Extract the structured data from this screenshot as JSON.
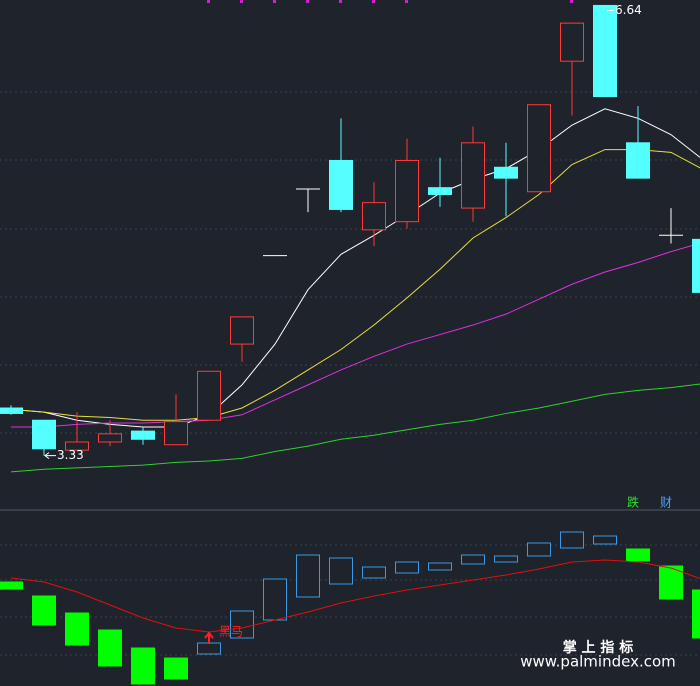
{
  "chart_data": [
    {
      "type": "candlestick",
      "ylim": [
        2.93,
        6.68
      ],
      "up_color": "#ff3a3a",
      "down_color": "#54ffff",
      "flat_color": "#ffffff",
      "open": [
        3.68,
        3.59,
        3.37,
        3.43,
        3.51,
        3.41,
        3.59,
        4.15,
        4.8,
        5.29,
        5.5,
        4.99,
        5.05,
        5.3,
        5.15,
        5.45,
        5.27,
        6.23,
        6.64,
        5.63,
        4.95,
        4.92
      ],
      "high": [
        3.7,
        3.59,
        3.65,
        3.59,
        3.54,
        3.78,
        3.95,
        4.35,
        4.8,
        5.29,
        5.81,
        5.34,
        5.66,
        5.52,
        5.75,
        5.63,
        5.91,
        6.51,
        6.64,
        5.9,
        5.15,
        4.92
      ],
      "low": [
        3.63,
        3.33,
        3.37,
        3.4,
        3.41,
        3.41,
        3.59,
        4.02,
        4.8,
        5.12,
        5.12,
        4.87,
        5.0,
        5.16,
        5.05,
        5.09,
        5.27,
        5.83,
        5.97,
        5.37,
        4.89,
        4.53
      ],
      "close": [
        3.64,
        3.38,
        3.43,
        3.49,
        3.45,
        3.58,
        3.95,
        4.35,
        4.8,
        5.29,
        5.14,
        5.19,
        5.5,
        5.25,
        5.63,
        5.37,
        5.91,
        6.51,
        5.97,
        5.37,
        4.95,
        4.53
      ],
      "ma": [
        {
          "color": "#ffffff",
          "values": [
            3.67,
            3.65,
            3.59,
            3.56,
            3.54,
            3.54,
            3.63,
            3.85,
            4.15,
            4.55,
            4.81,
            4.95,
            5.1,
            5.26,
            5.36,
            5.44,
            5.58,
            5.76,
            5.88,
            5.81,
            5.69,
            5.5
          ]
        },
        {
          "color": "#e8e040",
          "values": [
            3.67,
            3.65,
            3.62,
            3.61,
            3.59,
            3.59,
            3.61,
            3.68,
            3.81,
            3.96,
            4.11,
            4.29,
            4.49,
            4.7,
            4.93,
            5.08,
            5.25,
            5.47,
            5.58,
            5.58,
            5.56,
            5.43
          ]
        },
        {
          "color": "#e030e0",
          "values": [
            3.54,
            3.54,
            3.56,
            3.57,
            3.57,
            3.58,
            3.59,
            3.63,
            3.74,
            3.85,
            3.96,
            4.06,
            4.15,
            4.22,
            4.29,
            4.37,
            4.48,
            4.59,
            4.68,
            4.75,
            4.83,
            4.9
          ]
        },
        {
          "color": "#30d030",
          "values": [
            3.21,
            3.23,
            3.24,
            3.25,
            3.26,
            3.28,
            3.29,
            3.31,
            3.36,
            3.4,
            3.45,
            3.48,
            3.52,
            3.56,
            3.59,
            3.64,
            3.68,
            3.73,
            3.78,
            3.81,
            3.83,
            3.86
          ]
        }
      ]
    },
    {
      "type": "indicator",
      "ylim": [
        0,
        176
      ],
      "up_color": "#3a9ae8",
      "down_color": "#00ff00",
      "start": [
        104,
        90,
        73,
        56,
        38,
        28,
        32,
        48,
        66,
        89,
        102,
        108,
        113,
        116,
        122,
        124,
        130,
        138,
        142,
        137,
        120,
        96
      ],
      "end": [
        97,
        61,
        41,
        20,
        2,
        7,
        43,
        75,
        107,
        131,
        128,
        119,
        124,
        123,
        131,
        130,
        143,
        154,
        150,
        125,
        87,
        48
      ],
      "line": {
        "color": "#e01010",
        "values": [
          108,
          104,
          94,
          81,
          68,
          58,
          54,
          58,
          66,
          74,
          83,
          90,
          96,
          101,
          106,
          111,
          117,
          124,
          126,
          124,
          118,
          106
        ]
      },
      "annotation": "黑马",
      "signals": [
        "跌",
        "财"
      ]
    }
  ],
  "watermark": {
    "title": "掌 上 指 标",
    "url": "www.palmindex.com"
  }
}
